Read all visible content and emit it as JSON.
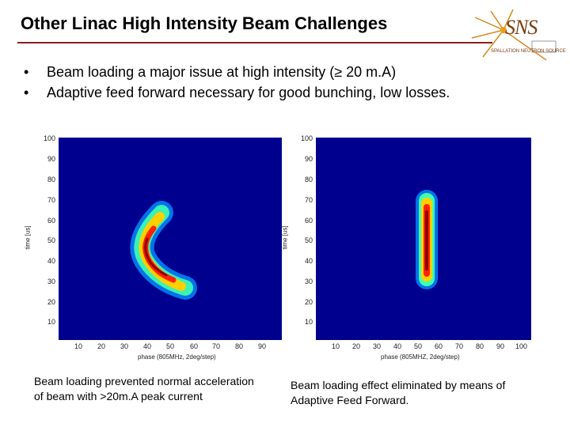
{
  "slide": {
    "title": "Other Linac High Intensity Beam Challenges",
    "bullets": [
      "Beam loading a major issue at high intensity (≥ 20 m.A)",
      "Adaptive feed forward necessary for good bunching, low losses."
    ],
    "bullet_symbol": "•"
  },
  "logo": {
    "text": "SNS",
    "subtext": "SPALLATION NEUTRON SOURCE"
  },
  "plots": [
    {
      "ylabel": "time [us]",
      "xlabel": "phase (805MHz, 2deg/step)",
      "yticks": [
        "100",
        "90",
        "80",
        "70",
        "60",
        "50",
        "40",
        "30",
        "20",
        "10"
      ],
      "xticks": [
        "10",
        "20",
        "30",
        "40",
        "50",
        "60",
        "70",
        "80",
        "90"
      ]
    },
    {
      "ylabel": "time [us]",
      "xlabel": "phase (805MHZ, 2deg/step)",
      "yticks": [
        "100",
        "90",
        "80",
        "70",
        "60",
        "50",
        "40",
        "30",
        "20",
        "10"
      ],
      "xticks": [
        "10",
        "20",
        "30",
        "40",
        "50",
        "60",
        "70",
        "80",
        "90",
        "100"
      ]
    }
  ],
  "captions": {
    "left": "Beam loading prevented normal acceleration of beam with >20m.A peak current",
    "right": "Beam loading effect eliminated by means of Adaptive Feed Forward."
  },
  "colors": {
    "background_plot": "#00008f",
    "rule": "#8b1e1e",
    "logo": "#7b3f12"
  }
}
